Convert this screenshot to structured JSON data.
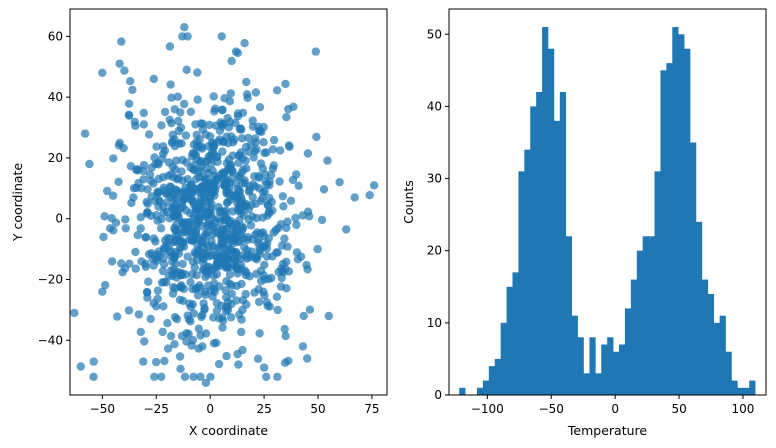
{
  "chart_data": [
    {
      "type": "scatter",
      "xlabel": "X coordinate",
      "ylabel": "Y coordinate",
      "xlim": [
        -65,
        82
      ],
      "ylim": [
        -58,
        69
      ],
      "xticks": [
        -50,
        -25,
        0,
        25,
        50,
        75
      ],
      "yticks": [
        -40,
        -20,
        0,
        20,
        40,
        60
      ],
      "xtick_labels": [
        "−50",
        "−25",
        "0",
        "25",
        "50",
        "75"
      ],
      "ytick_labels": [
        "−40",
        "−20",
        "0",
        "20",
        "40",
        "60"
      ],
      "color": "#1f77b4",
      "alpha": 0.7,
      "grid": false,
      "n_points": 1000,
      "distribution": "approximately bivariate normal, centered near (0, 0), std ~20 in both axes",
      "highlight_points": [
        [
          -12,
          63
        ],
        [
          76,
          11
        ],
        [
          -63,
          -31
        ],
        [
          -54,
          -47
        ],
        [
          -2,
          -54
        ],
        [
          12,
          55
        ],
        [
          49,
          55
        ],
        [
          -42,
          51
        ],
        [
          -50,
          48
        ],
        [
          -58,
          28
        ],
        [
          -56,
          18
        ],
        [
          67,
          7
        ],
        [
          60,
          12
        ],
        [
          -50,
          -24
        ],
        [
          -31,
          -47
        ],
        [
          26,
          -52
        ],
        [
          25,
          -49
        ],
        [
          43,
          -42
        ],
        [
          45,
          -46
        ],
        [
          55,
          -32
        ]
      ]
    },
    {
      "type": "bar",
      "subtype": "histogram",
      "xlabel": "Temperature",
      "ylabel": "Counts",
      "xlim": [
        -130,
        118
      ],
      "ylim": [
        0,
        53.5
      ],
      "xticks": [
        -100,
        -50,
        0,
        50,
        100
      ],
      "yticks": [
        0,
        10,
        20,
        30,
        40,
        50
      ],
      "xtick_labels": [
        "−100",
        "−50",
        "0",
        "50",
        "100"
      ],
      "ytick_labels": [
        "0",
        "10",
        "20",
        "30",
        "40",
        "50"
      ],
      "color": "#1f77b4",
      "grid": false,
      "bin_start": -122,
      "bin_width": 4.63,
      "counts": [
        1,
        0,
        0,
        1,
        2,
        4,
        5,
        10,
        15,
        17,
        31,
        34,
        40,
        42,
        51,
        48,
        38,
        42,
        22,
        11,
        8,
        3,
        8,
        3,
        7,
        8,
        6,
        7,
        12,
        16,
        20,
        22,
        22,
        31,
        45,
        46,
        51,
        50,
        48,
        35,
        24,
        16,
        14,
        10,
        11,
        6,
        2,
        1,
        1,
        2
      ]
    }
  ]
}
